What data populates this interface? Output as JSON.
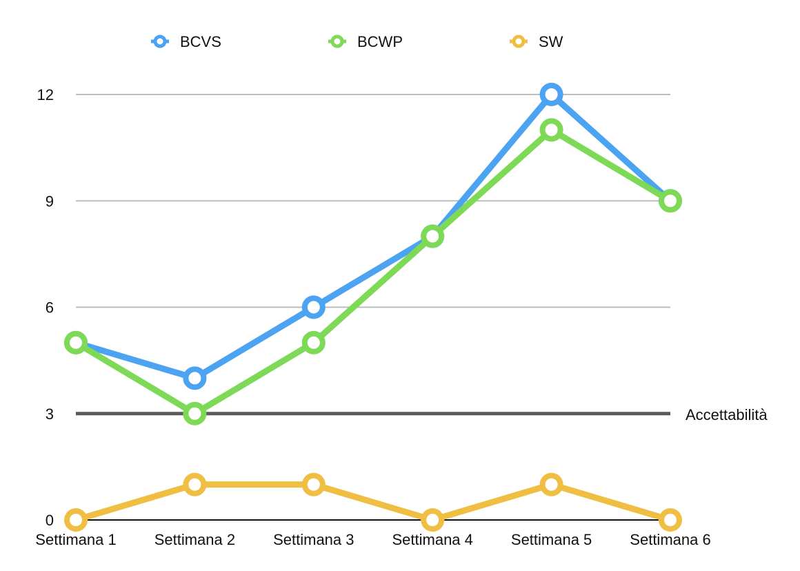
{
  "chart_data": {
    "type": "line",
    "categories": [
      "Settimana 1",
      "Settimana 2",
      "Settimana 3",
      "Settimana 4",
      "Settimana 5",
      "Settimana 6"
    ],
    "series": [
      {
        "name": "BCVS",
        "values": [
          5,
          4,
          6,
          8,
          12,
          9
        ],
        "color": "#4BA3F2"
      },
      {
        "name": "BCWP",
        "values": [
          5,
          3,
          5,
          8,
          11,
          9
        ],
        "color": "#7ED957"
      },
      {
        "name": "SW",
        "values": [
          0,
          1,
          1,
          0,
          1,
          0
        ],
        "color": "#F0BE43"
      }
    ],
    "yticks": [
      0,
      3,
      6,
      9,
      12
    ],
    "ylim": [
      0,
      12
    ],
    "grid": true,
    "legend_position": "top",
    "reference_line": {
      "value": 3,
      "label": "Accettabilità",
      "color": "#5a5a5a"
    }
  }
}
